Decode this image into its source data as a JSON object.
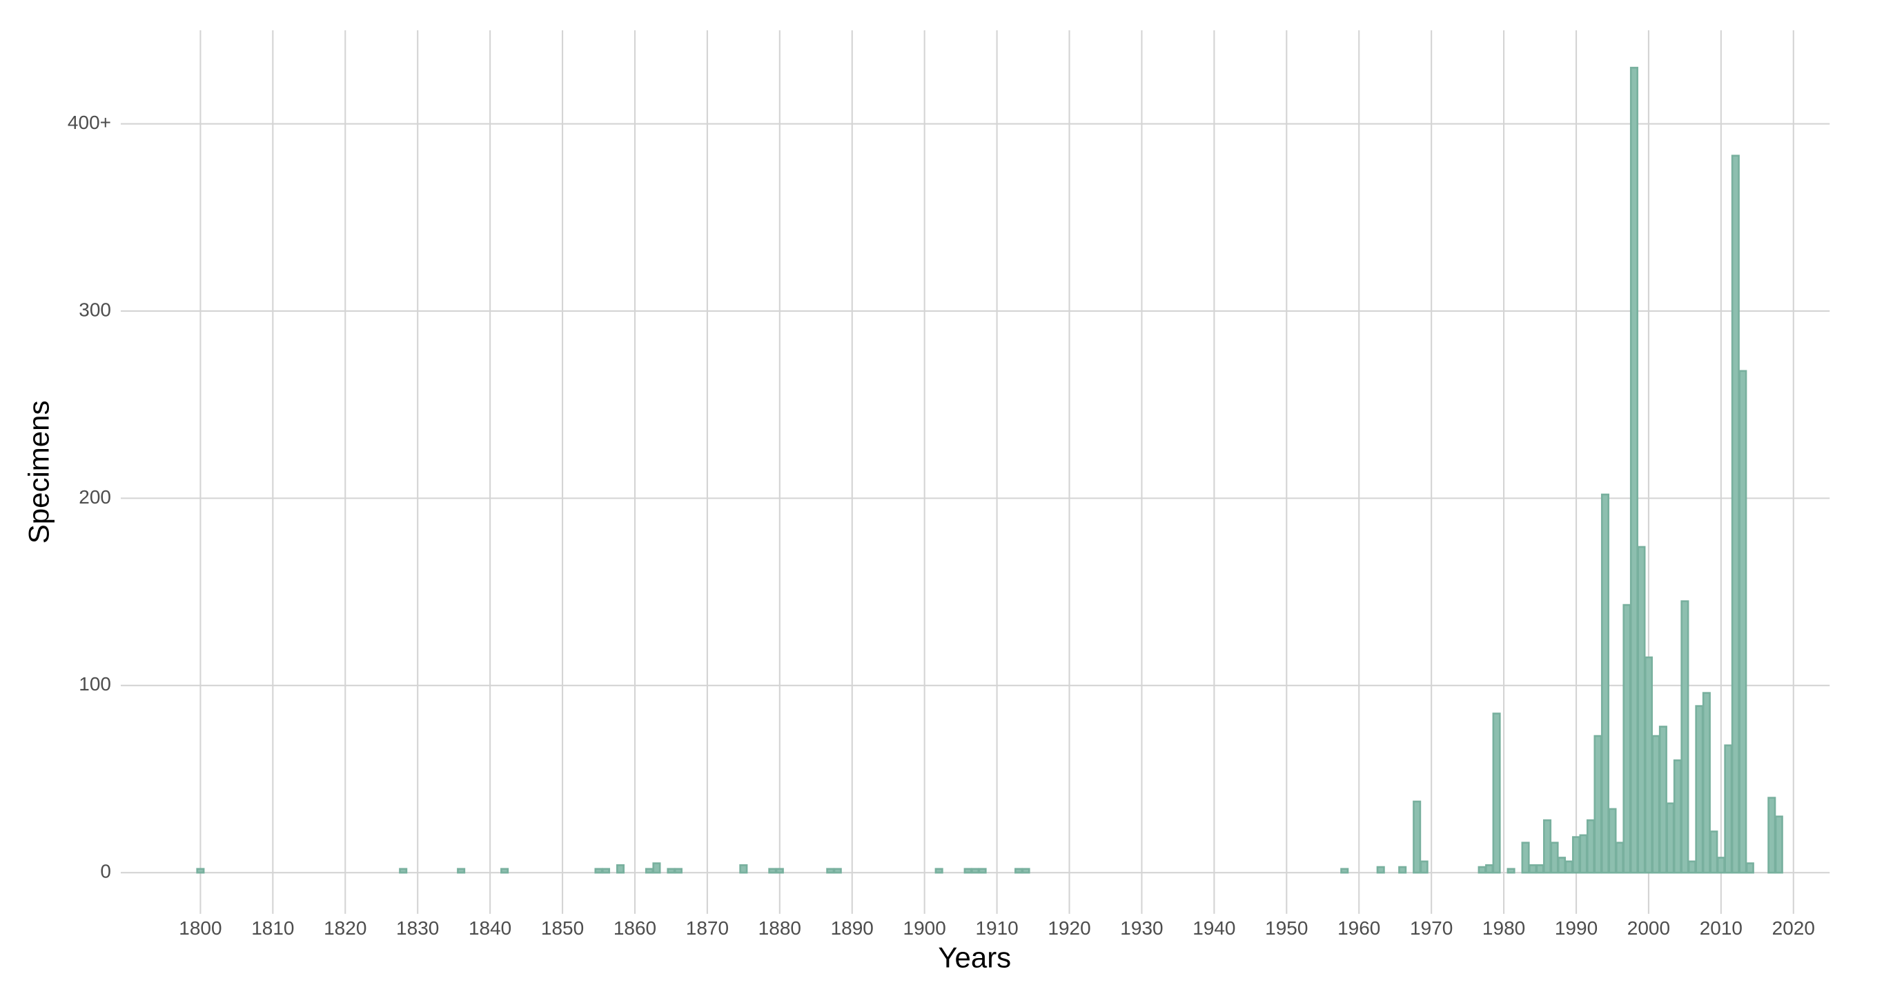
{
  "chart_data": {
    "type": "bar",
    "x_label": "Years",
    "y_label": "Specimens",
    "x": [
      1800,
      1801,
      1802,
      1803,
      1804,
      1805,
      1806,
      1807,
      1808,
      1809,
      1810,
      1811,
      1812,
      1813,
      1814,
      1815,
      1816,
      1817,
      1818,
      1819,
      1820,
      1821,
      1822,
      1823,
      1824,
      1825,
      1826,
      1827,
      1828,
      1829,
      1830,
      1831,
      1832,
      1833,
      1834,
      1835,
      1836,
      1837,
      1838,
      1839,
      1840,
      1841,
      1842,
      1843,
      1844,
      1845,
      1846,
      1847,
      1848,
      1849,
      1850,
      1851,
      1852,
      1853,
      1854,
      1855,
      1856,
      1857,
      1858,
      1859,
      1860,
      1861,
      1862,
      1863,
      1864,
      1865,
      1866,
      1867,
      1868,
      1869,
      1870,
      1871,
      1872,
      1873,
      1874,
      1875,
      1876,
      1877,
      1878,
      1879,
      1880,
      1881,
      1882,
      1883,
      1884,
      1885,
      1886,
      1887,
      1888,
      1889,
      1890,
      1891,
      1892,
      1893,
      1894,
      1895,
      1896,
      1897,
      1898,
      1899,
      1900,
      1901,
      1902,
      1903,
      1904,
      1905,
      1906,
      1907,
      1908,
      1909,
      1910,
      1911,
      1912,
      1913,
      1914,
      1915,
      1916,
      1917,
      1918,
      1919,
      1920,
      1921,
      1922,
      1923,
      1924,
      1925,
      1926,
      1927,
      1928,
      1929,
      1930,
      1931,
      1932,
      1933,
      1934,
      1935,
      1936,
      1937,
      1938,
      1939,
      1940,
      1941,
      1942,
      1943,
      1944,
      1945,
      1946,
      1947,
      1948,
      1949,
      1950,
      1951,
      1952,
      1953,
      1954,
      1955,
      1956,
      1957,
      1958,
      1959,
      1960,
      1961,
      1962,
      1963,
      1964,
      1965,
      1966,
      1967,
      1968,
      1969,
      1970,
      1971,
      1972,
      1973,
      1974,
      1975,
      1976,
      1977,
      1978,
      1979,
      1980,
      1981,
      1982,
      1983,
      1984,
      1985,
      1986,
      1987,
      1988,
      1989,
      1990,
      1991,
      1992,
      1993,
      1994,
      1995,
      1996,
      1997,
      1998,
      1999,
      2000,
      2001,
      2002,
      2003,
      2004,
      2005,
      2006,
      2007,
      2008,
      2009,
      2010,
      2011,
      2012,
      2013,
      2014,
      2015,
      2016,
      2017,
      2018
    ],
    "values": [
      2,
      0,
      0,
      0,
      0,
      0,
      0,
      0,
      0,
      0,
      0,
      0,
      0,
      0,
      0,
      0,
      0,
      0,
      0,
      0,
      0,
      0,
      0,
      0,
      0,
      0,
      0,
      0,
      2,
      0,
      0,
      0,
      0,
      0,
      0,
      0,
      2,
      0,
      0,
      0,
      0,
      0,
      2,
      0,
      0,
      0,
      0,
      0,
      0,
      0,
      0,
      0,
      0,
      0,
      0,
      2,
      2,
      0,
      4,
      0,
      0,
      0,
      2,
      5,
      0,
      2,
      2,
      0,
      0,
      0,
      0,
      0,
      0,
      0,
      0,
      4,
      0,
      0,
      0,
      2,
      2,
      0,
      0,
      0,
      0,
      0,
      0,
      2,
      2,
      0,
      0,
      0,
      0,
      0,
      0,
      0,
      0,
      0,
      0,
      0,
      0,
      0,
      2,
      0,
      0,
      0,
      2,
      2,
      2,
      0,
      0,
      0,
      0,
      2,
      2,
      0,
      0,
      0,
      0,
      0,
      0,
      0,
      0,
      0,
      0,
      0,
      0,
      0,
      0,
      0,
      0,
      0,
      0,
      0,
      0,
      0,
      0,
      0,
      0,
      0,
      0,
      0,
      0,
      0,
      0,
      0,
      0,
      0,
      0,
      0,
      0,
      0,
      0,
      0,
      0,
      0,
      0,
      0,
      2,
      0,
      0,
      0,
      0,
      3,
      0,
      0,
      3,
      0,
      38,
      6,
      0,
      0,
      0,
      0,
      0,
      0,
      0,
      3,
      4,
      85,
      0,
      2,
      0,
      16,
      4,
      4,
      28,
      16,
      8,
      6,
      19,
      20,
      28,
      73,
      202,
      34,
      16,
      143,
      430,
      174,
      115,
      73,
      78,
      37,
      60,
      145,
      6,
      89,
      96,
      22,
      8,
      68,
      383,
      268,
      5,
      0,
      0,
      40,
      30
    ],
    "color": "#8dbfaf",
    "edge_color": "#78b09e",
    "xlim": [
      1789,
      2025
    ],
    "ylim": [
      -22,
      450
    ],
    "xticks": [
      1800,
      1810,
      1820,
      1830,
      1840,
      1850,
      1860,
      1870,
      1880,
      1890,
      1900,
      1910,
      1920,
      1930,
      1940,
      1950,
      1960,
      1970,
      1980,
      1990,
      2000,
      2010,
      2020
    ],
    "yticks": [
      0,
      100,
      200,
      300,
      {
        "value": 400,
        "label": "400+"
      }
    ],
    "grid": true
  }
}
